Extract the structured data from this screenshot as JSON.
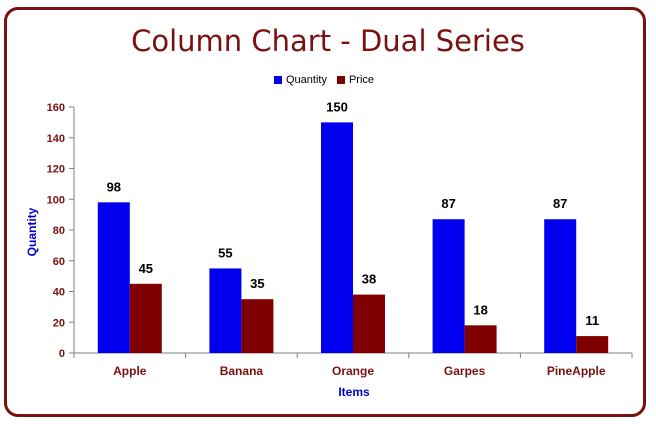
{
  "chart_data": {
    "type": "bar",
    "title": "Column Chart - Dual Series",
    "xlabel": "Items",
    "ylabel": "Quantity",
    "categories": [
      "Apple",
      "Banana",
      "Orange",
      "Garpes",
      "PineApple"
    ],
    "series": [
      {
        "name": "Quantity",
        "color": "#0000ee",
        "values": [
          98,
          55,
          150,
          87,
          87
        ]
      },
      {
        "name": "Price",
        "color": "#800000",
        "values": [
          45,
          35,
          38,
          18,
          11
        ]
      }
    ],
    "ylim": [
      0,
      160
    ],
    "yticks": [
      "0",
      "20",
      "40",
      "60",
      "80",
      "100",
      "120",
      "140",
      "160"
    ],
    "grid": false,
    "legend_position": "top"
  }
}
